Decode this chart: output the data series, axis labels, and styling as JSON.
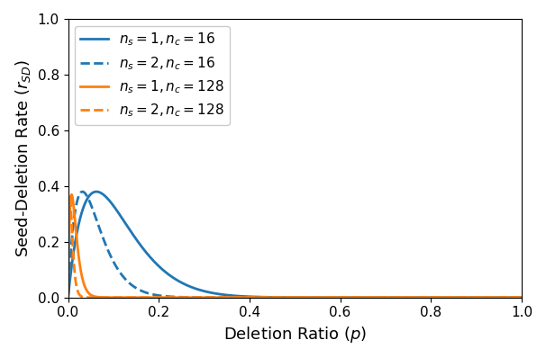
{
  "ns_nc_combos": [
    {
      "ns": 1,
      "nc": 16,
      "color": "#1f77b4",
      "linestyle": "solid",
      "label": "$n_s = 1, n_c = 16$"
    },
    {
      "ns": 2,
      "nc": 16,
      "color": "#1f77b4",
      "linestyle": "dashed",
      "label": "$n_s = 2, n_c = 16$"
    },
    {
      "ns": 1,
      "nc": 128,
      "color": "#ff7f0e",
      "linestyle": "solid",
      "label": "$n_s = 1, n_c = 128$"
    },
    {
      "ns": 2,
      "nc": 128,
      "color": "#ff7f0e",
      "linestyle": "dashed",
      "label": "$n_s = 2, n_c = 128$"
    }
  ],
  "xlabel": "Deletion Ratio ($p$)",
  "ylabel": "Seed-Deletion Rate ($r_{SD}$)",
  "xlim": [
    0.0,
    1.0
  ],
  "ylim": [
    0.0,
    1.0
  ],
  "num_points": 2000,
  "linewidth": 2.0,
  "legend_fontsize": 11,
  "axis_fontsize": 13,
  "tick_fontsize": 11,
  "legend_loc": "upper left",
  "xtick_spacing": 0.2,
  "ytick_spacing": 0.2
}
